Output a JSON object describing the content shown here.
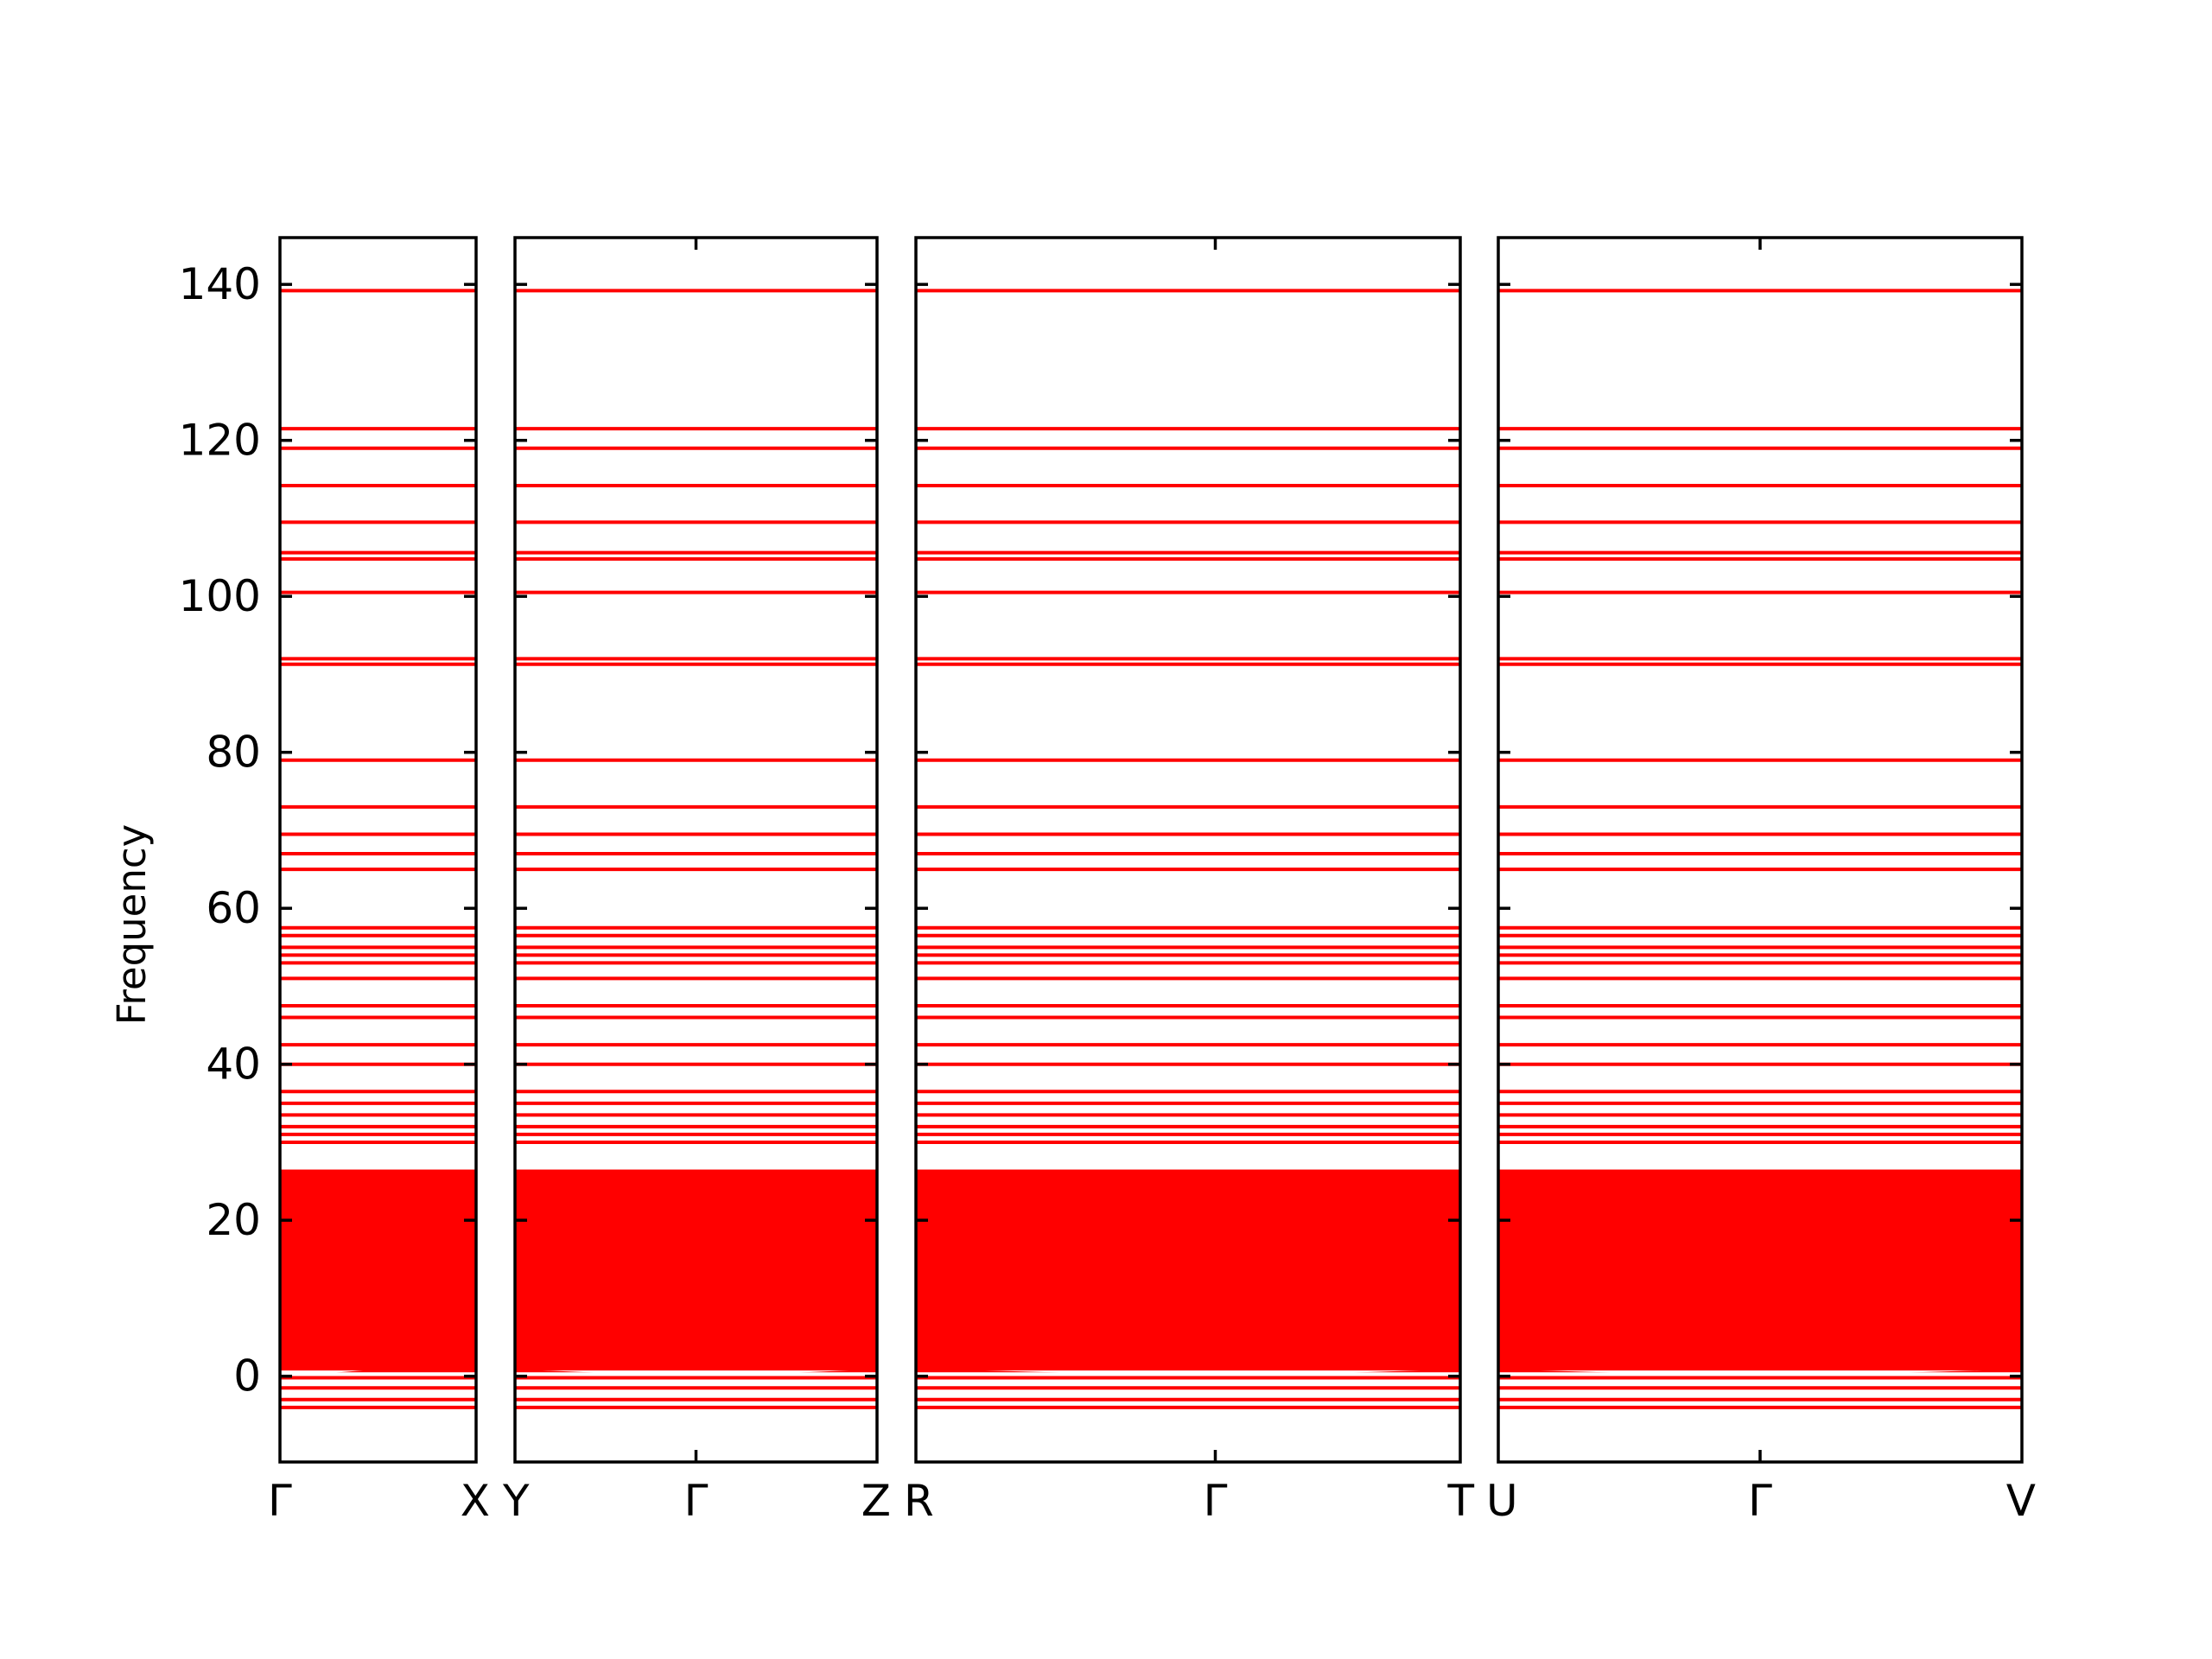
{
  "chart_data": {
    "type": "line",
    "title": "",
    "ylabel": "Frequency",
    "ylim": [
      -11,
      146
    ],
    "yticks": [
      0,
      20,
      40,
      60,
      80,
      100,
      120,
      140
    ],
    "line_color": "#ff0000",
    "axis_color": "#000000",
    "grid": false,
    "legend": "none",
    "bands": [
      -4,
      -3,
      -1.5,
      -0.2,
      30,
      31,
      32,
      33.5,
      35,
      36.5,
      40,
      42.5,
      46,
      47.5,
      51,
      53,
      54,
      55,
      56.5,
      57.5,
      65,
      67,
      69.5,
      73,
      79,
      91.3,
      92,
      100.5,
      104.8,
      105.6,
      109.5,
      114.2,
      119,
      121.5,
      139.2
    ],
    "dense_band_range": [
      0.5,
      26.5
    ],
    "dip_points": [
      {
        "panel": 0,
        "dips_at": [
          0
        ]
      },
      {
        "panel": 1,
        "dips_at": [
          0.5
        ]
      },
      {
        "panel": 2,
        "dips_at": [
          0.55
        ]
      },
      {
        "panel": 3,
        "dips_at": [
          0.5
        ]
      }
    ],
    "panels": [
      {
        "name": "panel-gamma-x",
        "x_labels": [
          "Γ",
          "X"
        ],
        "x_label_positions": [
          0,
          1
        ]
      },
      {
        "name": "panel-y-gamma-z",
        "x_labels": [
          "Y",
          "Γ",
          "Z"
        ],
        "x_label_positions": [
          0,
          0.5,
          1
        ]
      },
      {
        "name": "panel-r-gamma-t",
        "x_labels": [
          "R",
          "Γ",
          "T"
        ],
        "x_label_positions": [
          0,
          0.55,
          1
        ]
      },
      {
        "name": "panel-u-gamma-v",
        "x_labels": [
          "U",
          "Γ",
          "V"
        ],
        "x_label_positions": [
          0,
          0.5,
          1
        ]
      }
    ]
  }
}
